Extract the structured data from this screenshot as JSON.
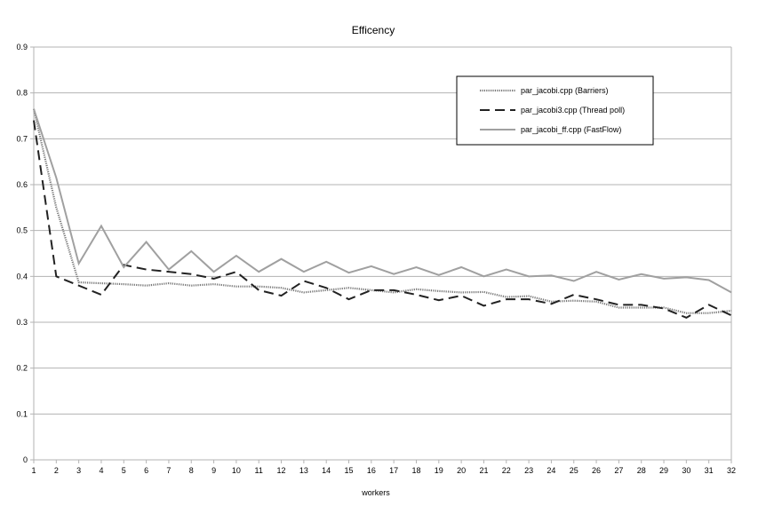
{
  "chart_data": {
    "type": "line",
    "title": "Efficency",
    "xlabel": "workers",
    "ylabel": "",
    "x": [
      1,
      2,
      3,
      4,
      5,
      6,
      7,
      8,
      9,
      10,
      11,
      12,
      13,
      14,
      15,
      16,
      17,
      18,
      19,
      20,
      21,
      22,
      23,
      24,
      25,
      26,
      27,
      28,
      29,
      30,
      31,
      32
    ],
    "xlim": [
      1,
      32
    ],
    "ylim": [
      0,
      0.9
    ],
    "yticks": [
      "0",
      "0.1",
      "0.2",
      "0.3",
      "0.4",
      "0.5",
      "0.6",
      "0.7",
      "0.8",
      "0.9"
    ],
    "grid": true,
    "legend_position": "top-right",
    "series": [
      {
        "name": "par_jacobi.cpp (Barriers)",
        "style": "dotted",
        "color": "#777777",
        "values": [
          0.765,
          0.55,
          0.387,
          0.385,
          0.383,
          0.38,
          0.385,
          0.38,
          0.383,
          0.378,
          0.378,
          0.375,
          0.365,
          0.37,
          0.375,
          0.37,
          0.365,
          0.372,
          0.368,
          0.365,
          0.366,
          0.355,
          0.357,
          0.345,
          0.347,
          0.345,
          0.332,
          0.332,
          0.332,
          0.32,
          0.32,
          0.325
        ]
      },
      {
        "name": "par_jacobi3.cpp (Thread poll)",
        "style": "dashed",
        "color": "#222222",
        "values": [
          0.74,
          0.4,
          0.38,
          0.36,
          0.425,
          0.415,
          0.41,
          0.405,
          0.395,
          0.41,
          0.37,
          0.358,
          0.39,
          0.375,
          0.35,
          0.37,
          0.37,
          0.36,
          0.348,
          0.358,
          0.336,
          0.35,
          0.35,
          0.34,
          0.36,
          0.35,
          0.338,
          0.338,
          0.33,
          0.31,
          0.338,
          0.315
        ]
      },
      {
        "name": "par_jacobi_ff.cpp (FastFlow)",
        "style": "solid",
        "color": "#a0a0a0",
        "values": [
          0.765,
          0.615,
          0.428,
          0.51,
          0.42,
          0.475,
          0.415,
          0.455,
          0.41,
          0.445,
          0.41,
          0.438,
          0.41,
          0.432,
          0.408,
          0.422,
          0.405,
          0.42,
          0.403,
          0.42,
          0.4,
          0.415,
          0.4,
          0.402,
          0.39,
          0.41,
          0.393,
          0.405,
          0.395,
          0.398,
          0.392,
          0.365
        ]
      }
    ]
  }
}
